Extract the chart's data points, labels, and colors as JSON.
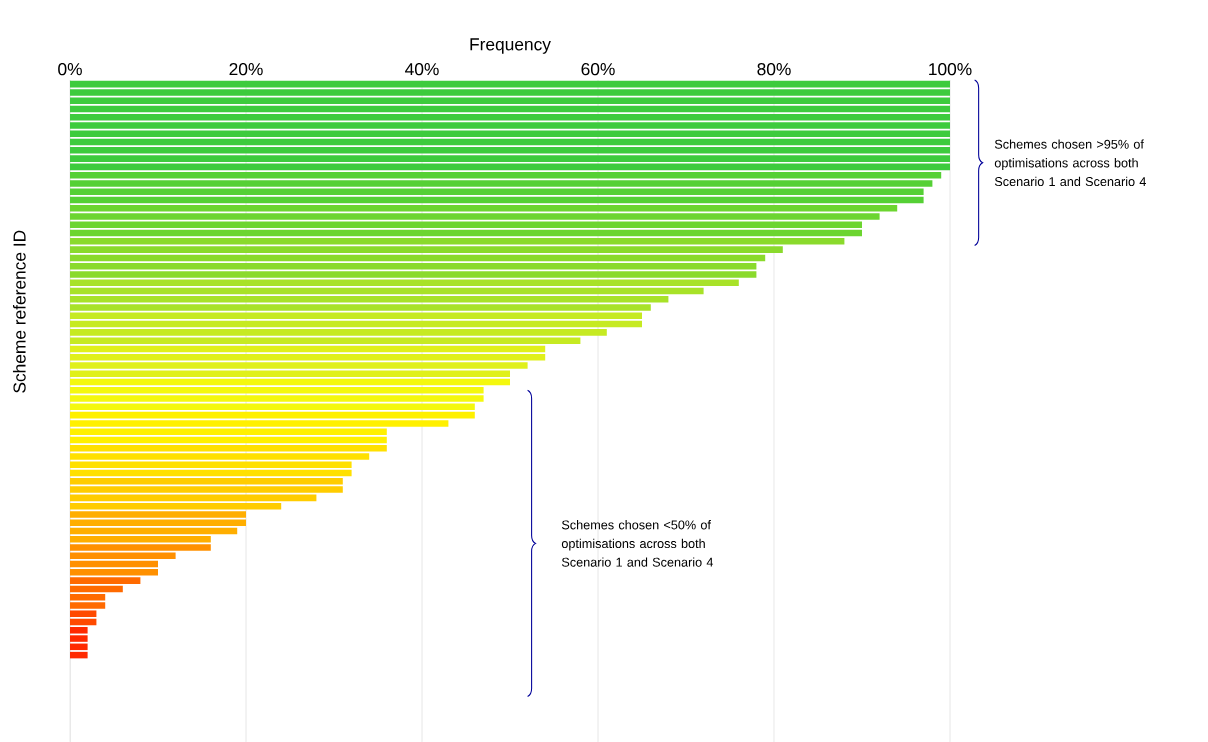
{
  "chart_data": {
    "type": "bar",
    "orientation": "horizontal",
    "xlabel": "Frequency",
    "ylabel": "Scheme reference ID",
    "categories": [
      null,
      null,
      null,
      null,
      null,
      null,
      null,
      null,
      null,
      null,
      null,
      null,
      null,
      null,
      null,
      null,
      null,
      null,
      null,
      null,
      null,
      null,
      null,
      null,
      null,
      null,
      null,
      null,
      null,
      null,
      null,
      null,
      null,
      null,
      null,
      null,
      null,
      null,
      null,
      null,
      null,
      null,
      null,
      null,
      null,
      null,
      null,
      null,
      null,
      null,
      null,
      null,
      null,
      null,
      null,
      null,
      null,
      null,
      null,
      null,
      null,
      null,
      null,
      null,
      null,
      null,
      null,
      null,
      null,
      null,
      null,
      null,
      null,
      null,
      null,
      null,
      null,
      null,
      null,
      null
    ],
    "values": [
      100,
      100,
      100,
      100,
      100,
      100,
      100,
      100,
      100,
      100,
      100,
      99,
      98,
      97,
      97,
      94,
      92,
      90,
      90,
      88,
      81,
      79,
      78,
      78,
      76,
      72,
      68,
      66,
      65,
      65,
      61,
      58,
      54,
      54,
      52,
      50,
      50,
      47,
      47,
      46,
      46,
      43,
      36,
      36,
      36,
      34,
      32,
      32,
      31,
      31,
      28,
      24,
      20,
      20,
      19,
      16,
      16,
      12,
      10,
      10,
      8,
      6,
      4,
      4,
      3,
      3,
      2,
      2,
      2,
      2,
      0,
      0,
      0,
      0,
      0,
      0,
      0,
      0,
      0,
      0
    ],
    "colors": [
      "#3dcb3d",
      "#3dcb3d",
      "#3dcb3d",
      "#3dcb3d",
      "#3dcb3d",
      "#3dcb3d",
      "#3dcb3d",
      "#3dcb3d",
      "#3dcb3d",
      "#3dcb3d",
      "#3dcb3d",
      "#55d035",
      "#55d035",
      "#55d035",
      "#55d035",
      "#6cd530",
      "#6cd530",
      "#6cd530",
      "#6cd530",
      "#8ada2c",
      "#8ada2c",
      "#8ada2c",
      "#8ada2c",
      "#8ada2c",
      "#a8e228",
      "#a8e228",
      "#a8e228",
      "#a8e228",
      "#c6ea22",
      "#c6ea22",
      "#c6ea22",
      "#c6ea22",
      "#e0f01a",
      "#e0f01a",
      "#e0f01a",
      "#e0f01a",
      "#f4f80e",
      "#f4f80e",
      "#f4f80e",
      "#f4f80e",
      "#fff000",
      "#fff000",
      "#fff000",
      "#fff000",
      "#ffe000",
      "#ffe000",
      "#ffe000",
      "#ffe000",
      "#ffcc00",
      "#ffcc00",
      "#ffcc00",
      "#ffcc00",
      "#ffae00",
      "#ffae00",
      "#ffae00",
      "#ffae00",
      "#ff9000",
      "#ff9000",
      "#ff9000",
      "#ff9000",
      "#ff6a00",
      "#ff6a00",
      "#ff6a00",
      "#ff6a00",
      "#ff4a00",
      "#ff4a00",
      "#ff2a00",
      "#ff2a00",
      "#ff2a00",
      "#ff2a00",
      "#ff2a00",
      "#ff2a00",
      "#ff2a00",
      "#ff2a00",
      "#ff2a00",
      "#ff2a00",
      "#ff2a00",
      "#ff2a00",
      "#ff2a00",
      "#ff2a00"
    ],
    "xlim": [
      0,
      100
    ],
    "xticks": [
      {
        "value": 0,
        "label": "0%"
      },
      {
        "value": 20,
        "label": "20%"
      },
      {
        "value": 40,
        "label": "40%"
      },
      {
        "value": 60,
        "label": "60%"
      },
      {
        "value": 80,
        "label": "80%"
      },
      {
        "value": 100,
        "label": "100%"
      }
    ],
    "grid": "x",
    "annotations": [
      "Schemes chosen >95% of optimisations across both Scenario 1 and Scenario 4",
      "Schemes chosen <50% of optimisations across both Scenario 1 and Scenario 4"
    ]
  }
}
